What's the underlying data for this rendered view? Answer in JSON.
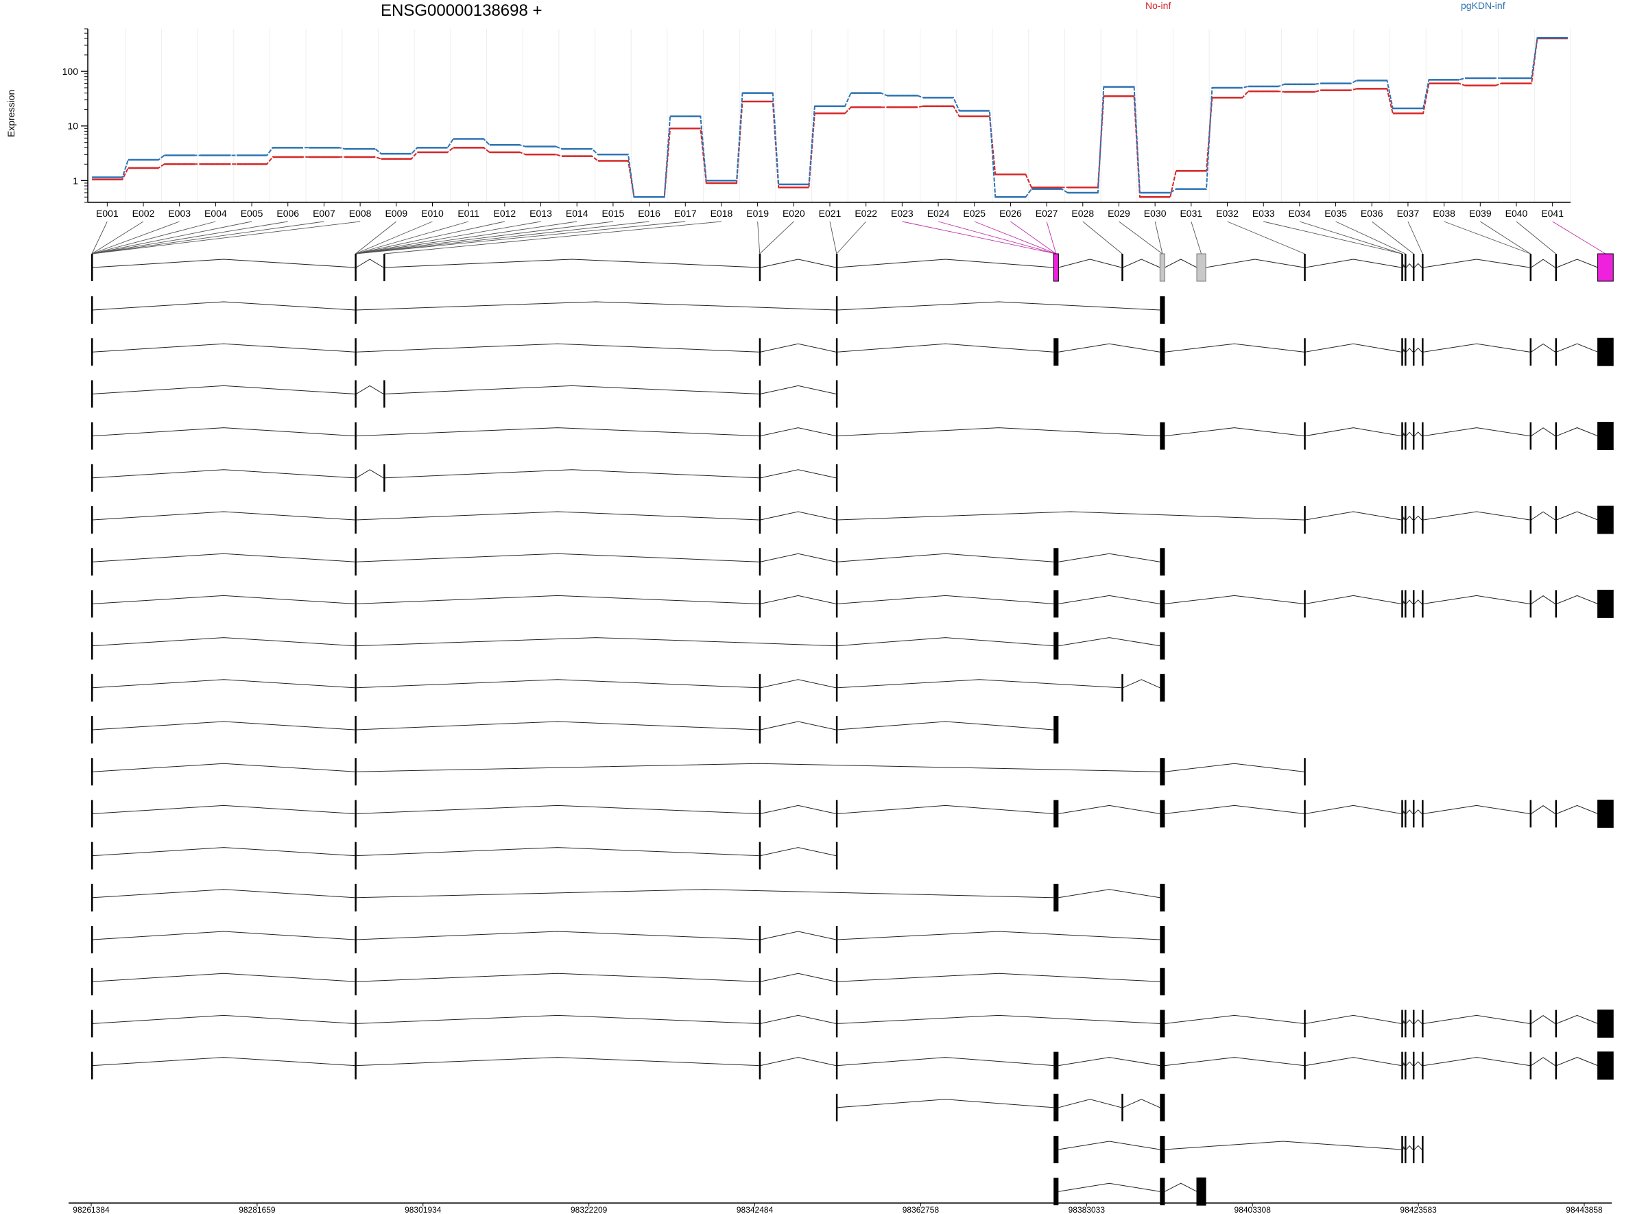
{
  "chart_data": {
    "type": "line",
    "title": "ENSG00000138698 +",
    "ylabel": "Expression",
    "yscale": "log",
    "ylim": [
      0.4,
      600
    ],
    "yticks": [
      "1",
      "10",
      "100"
    ],
    "categories": [
      "E001",
      "E002",
      "E003",
      "E004",
      "E005",
      "E006",
      "E007",
      "E008",
      "E009",
      "E010",
      "E011",
      "E012",
      "E013",
      "E014",
      "E015",
      "E016",
      "E017",
      "E018",
      "E019",
      "E020",
      "E021",
      "E022",
      "E023",
      "E024",
      "E025",
      "E026",
      "E027",
      "E028",
      "E029",
      "E030",
      "E031",
      "E032",
      "E033",
      "E034",
      "E035",
      "E036",
      "E037",
      "E038",
      "E039",
      "E040",
      "E041"
    ],
    "series": [
      {
        "name": "No-inf",
        "color": "#d62728",
        "values": [
          1.05,
          1.7,
          2.0,
          2.0,
          2.0,
          2.7,
          2.7,
          2.7,
          2.5,
          3.3,
          4.0,
          3.3,
          3.0,
          2.8,
          2.3,
          0.5,
          9.0,
          0.9,
          28,
          0.75,
          17,
          22,
          22,
          23,
          15,
          1.3,
          0.75,
          0.75,
          35,
          0.5,
          1.5,
          33,
          43,
          42,
          45,
          48,
          17,
          60,
          55,
          60,
          400
        ]
      },
      {
        "name": "pgKDN-inf",
        "color": "#2f73b4",
        "values": [
          1.15,
          2.4,
          2.9,
          2.9,
          2.9,
          4.0,
          4.0,
          3.8,
          3.1,
          4.0,
          5.8,
          4.5,
          4.2,
          3.8,
          3.0,
          0.5,
          15,
          1.0,
          40,
          0.85,
          23,
          40,
          36,
          33,
          19,
          0.5,
          0.7,
          0.6,
          52,
          0.6,
          0.7,
          50,
          53,
          58,
          60,
          68,
          21,
          70,
          75,
          75,
          410
        ]
      }
    ],
    "genomic_axis": {
      "tick_labels": [
        "98261384",
        "98281659",
        "98301934",
        "98322209",
        "98342484",
        "98362758",
        "98383033",
        "98403308",
        "98423583",
        "98443858"
      ],
      "range": [
        98261384,
        98443858
      ]
    },
    "exon_starts": [
      98261384,
      98293600,
      98297100,
      98343000,
      98352400,
      98379000,
      98387300,
      98392000,
      98396500,
      98409600,
      98421500,
      98421900,
      98422900,
      98424000,
      98437200,
      98440300,
      98445500
    ],
    "exon_ends": [
      98261500,
      98293700,
      98297200,
      98343150,
      98352500,
      98379600,
      98387400,
      98392600,
      98397600,
      98409700,
      98421700,
      98422100,
      98423100,
      98424200,
      98437300,
      98440400,
      98447400
    ],
    "summary_track": {
      "exons": [
        0,
        1,
        2,
        3,
        4,
        5,
        6,
        7,
        8,
        9,
        10,
        11,
        12,
        13,
        14,
        15,
        16
      ],
      "highlight_magenta": [
        5,
        16
      ],
      "highlight_gray": [
        7,
        8
      ]
    },
    "transcripts": [
      {
        "exons": [
          0,
          1,
          4,
          7
        ]
      },
      {
        "exons": [
          0,
          1,
          3,
          4,
          5,
          7,
          9,
          10,
          11,
          12,
          13,
          14,
          15,
          16
        ]
      },
      {
        "exons": [
          0,
          1,
          2,
          3,
          4
        ]
      },
      {
        "exons": [
          0,
          1,
          3,
          4,
          7,
          9,
          10,
          11,
          12,
          13,
          14,
          15,
          16
        ]
      },
      {
        "exons": [
          0,
          1,
          2,
          3,
          4
        ]
      },
      {
        "exons": [
          0,
          1,
          3,
          4,
          9,
          10,
          11,
          12,
          13,
          14,
          15,
          16
        ]
      },
      {
        "exons": [
          0,
          1,
          3,
          4,
          5,
          7
        ],
        "thick_last": true
      },
      {
        "exons": [
          0,
          1,
          3,
          4,
          5,
          7,
          9,
          10,
          11,
          12,
          13,
          14,
          15,
          16
        ]
      },
      {
        "exons": [
          0,
          1,
          4,
          5,
          7
        ]
      },
      {
        "exons": [
          0,
          1,
          3,
          4,
          6,
          7
        ]
      },
      {
        "exons": [
          0,
          1,
          3,
          4,
          5
        ],
        "thick_last": true
      },
      {
        "exons": [
          0,
          1,
          7,
          9
        ]
      },
      {
        "exons": [
          0,
          1,
          3,
          4,
          5,
          7,
          9,
          10,
          11,
          12,
          13,
          14,
          15,
          16
        ]
      },
      {
        "exons": [
          0,
          1,
          3,
          4
        ]
      },
      {
        "exons": [
          0,
          1,
          5,
          7
        ]
      },
      {
        "exons": [
          0,
          1,
          3,
          4,
          7
        ]
      },
      {
        "exons": [
          0,
          1,
          3,
          4,
          7
        ],
        "thick_last": true
      },
      {
        "exons": [
          0,
          1,
          3,
          4,
          7,
          9,
          10,
          11,
          12,
          13,
          14,
          15,
          16
        ]
      },
      {
        "exons": [
          0,
          1,
          3,
          4,
          5,
          7,
          9,
          10,
          11,
          12,
          13,
          14,
          15,
          16
        ]
      },
      {
        "exons": [
          4,
          5,
          6,
          7
        ]
      },
      {
        "exons": [
          5,
          7,
          10,
          11,
          12,
          13
        ]
      },
      {
        "exons": [
          5,
          7,
          8
        ],
        "thick_last": true
      }
    ]
  }
}
